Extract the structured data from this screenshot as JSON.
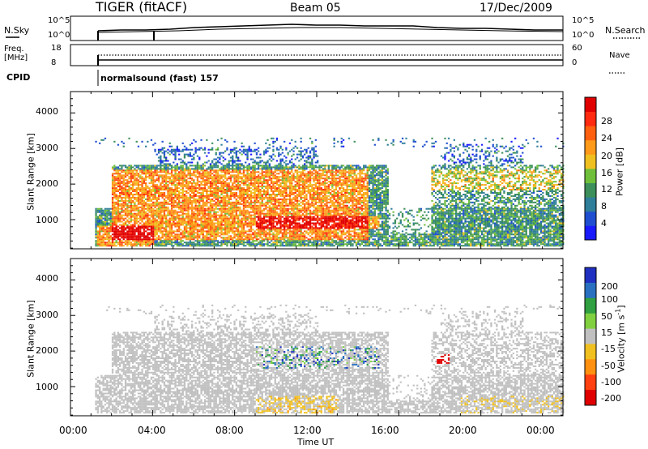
{
  "header": {
    "radar": "TIGER (fitACF)",
    "beam": "Beam 05",
    "date": "17/Dec/2009"
  },
  "panels": {
    "nsky_label": "N.Sky",
    "nsearch_label": "N.Search",
    "nsky_ticks": [
      "10^5",
      "10^0"
    ],
    "nsearch_ticks": [
      "10^5",
      "10^0"
    ],
    "freq_label_1": "Freq.",
    "freq_label_2": "[MHz]",
    "freq_ticks": [
      "18",
      "8"
    ],
    "nave_label": "Nave",
    "nave_ticks": [
      "60",
      "0"
    ],
    "cpid_label": "CPID",
    "cpid_value": "normalsound (fast) 157"
  },
  "chart_data": [
    {
      "type": "heatmap",
      "title": "",
      "xlabel": "",
      "ylabel": "Slant Range [km]",
      "x_range_hours": [
        0,
        24
      ],
      "ylim": [
        180,
        4600
      ],
      "yticks": [
        "1000",
        "2000",
        "3000",
        "4000"
      ],
      "colorbar": {
        "label": "Power [dB]",
        "ticks": [
          "4",
          "8",
          "12",
          "16",
          "20",
          "24",
          "28"
        ],
        "range": [
          0,
          30
        ],
        "colors": [
          "#1a1aff",
          "#1f4fd0",
          "#2f7e9a",
          "#3c8f5a",
          "#6fbf3a",
          "#f0c020",
          "#ff9a1a",
          "#ff6010",
          "#ff2a10",
          "#e00000"
        ]
      }
    },
    {
      "type": "heatmap",
      "title": "",
      "xlabel": "Time UT",
      "ylabel": "Slant Range [km]",
      "x_range_hours": [
        0,
        24
      ],
      "ylim": [
        180,
        4600
      ],
      "yticks": [
        "1000",
        "2000",
        "3000",
        "4000"
      ],
      "xticks": [
        "00:00",
        "04:00",
        "08:00",
        "12:00",
        "16:00",
        "20:00",
        "00:00"
      ],
      "colorbar": {
        "label": "Velocity [m s-1]",
        "ticks": [
          "200",
          "100",
          "50",
          "15",
          "-15",
          "-50",
          "-100",
          "-200"
        ],
        "range": [
          -250,
          250
        ],
        "colors": [
          "#2030c0",
          "#2a70c0",
          "#30a040",
          "#80d040",
          "#c0c0c0",
          "#f0c020",
          "#ff9010",
          "#ff4010",
          "#e00000"
        ]
      }
    }
  ]
}
